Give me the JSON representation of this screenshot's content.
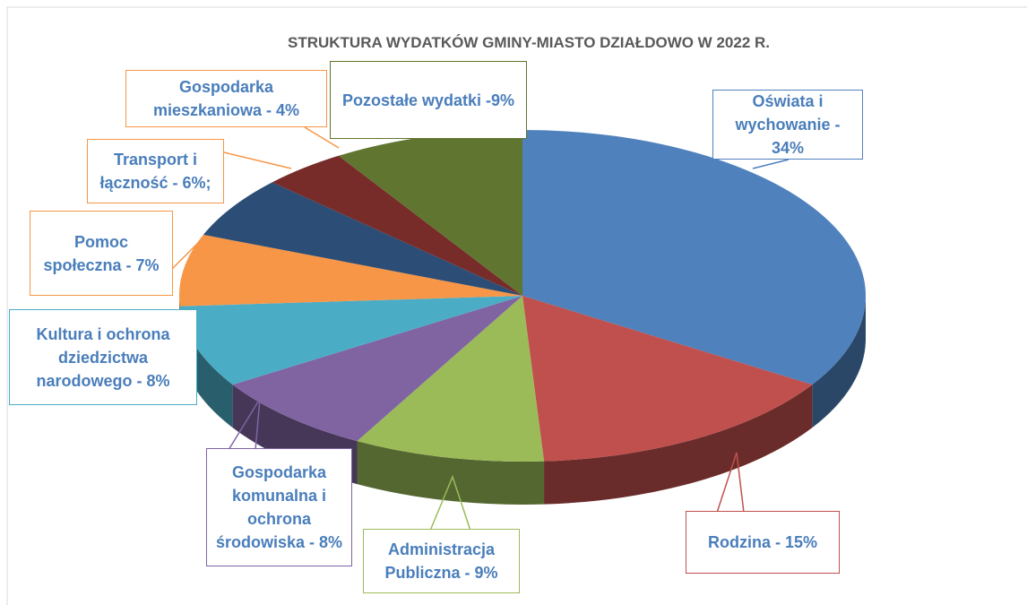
{
  "chart_data": {
    "type": "pie",
    "title": "STRUKTURA WYDATKÓW GMINY-MIASTO DZIAŁDOWO W 2022 R.",
    "values": [
      34,
      15,
      9,
      8,
      8,
      7,
      6,
      4,
      9
    ],
    "value_labels": [
      "Oświata i wychowanie - 34%",
      "Rodzina - 15%",
      "Administracja Publiczna - 9%",
      "Gospodarka komunalna i ochrona środowiska - 8%",
      "Kultura i ochrona dziedzictwa narodowego - 8%",
      "Pomoc społeczna - 7%",
      "Transport i łączność - 6%;",
      "Gospodarka mieszkaniowa - 4%",
      "Pozostałe wydatki -9%"
    ],
    "colors": [
      "#4f81bd",
      "#c0504d",
      "#9bbb59",
      "#8064a2",
      "#4bacc6",
      "#f79646",
      "#2c4d75",
      "#772c2a",
      "#5f7530"
    ]
  }
}
